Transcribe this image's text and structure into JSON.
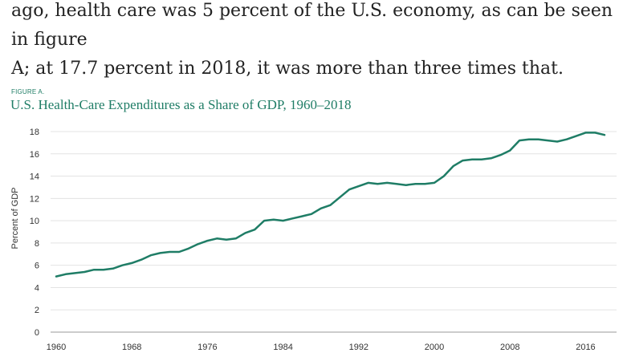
{
  "article": {
    "line1": "ago, health care was 5 percent of the U.S. economy, as can be seen in figure",
    "line2": "A; at 17.7 percent in 2018, it was more than three times that."
  },
  "figure": {
    "label": "FIGURE A.",
    "title": "U.S. Health-Care Expenditures as a Share of GDP, 1960–2018"
  },
  "chart_data": {
    "type": "line",
    "title": "U.S. Health-Care Expenditures as a Share of GDP, 1960–2018",
    "xlabel": "",
    "ylabel": "Percent of GDP",
    "xlim": [
      1960,
      2018
    ],
    "ylim": [
      0,
      18
    ],
    "x_ticks": [
      "1960",
      "1968",
      "1976",
      "1984",
      "1992",
      "2000",
      "2008",
      "2016"
    ],
    "y_ticks": [
      "0",
      "2",
      "4",
      "6",
      "8",
      "10",
      "12",
      "14",
      "16",
      "18"
    ],
    "grid": "horizontal",
    "line_color": "#1f7d66",
    "x": [
      1960,
      1961,
      1962,
      1963,
      1964,
      1965,
      1966,
      1967,
      1968,
      1969,
      1970,
      1971,
      1972,
      1973,
      1974,
      1975,
      1976,
      1977,
      1978,
      1979,
      1980,
      1981,
      1982,
      1983,
      1984,
      1985,
      1986,
      1987,
      1988,
      1989,
      1990,
      1991,
      1992,
      1993,
      1994,
      1995,
      1996,
      1997,
      1998,
      1999,
      2000,
      2001,
      2002,
      2003,
      2004,
      2005,
      2006,
      2007,
      2008,
      2009,
      2010,
      2011,
      2012,
      2013,
      2014,
      2015,
      2016,
      2017,
      2018
    ],
    "values": [
      5.0,
      5.2,
      5.3,
      5.4,
      5.6,
      5.6,
      5.7,
      6.0,
      6.2,
      6.5,
      6.9,
      7.1,
      7.2,
      7.2,
      7.5,
      7.9,
      8.2,
      8.4,
      8.3,
      8.4,
      8.9,
      9.2,
      10.0,
      10.1,
      10.0,
      10.2,
      10.4,
      10.6,
      11.1,
      11.4,
      12.1,
      12.8,
      13.1,
      13.4,
      13.3,
      13.4,
      13.3,
      13.2,
      13.3,
      13.3,
      13.4,
      14.0,
      14.9,
      15.4,
      15.5,
      15.5,
      15.6,
      15.9,
      16.3,
      17.2,
      17.3,
      17.3,
      17.2,
      17.1,
      17.3,
      17.6,
      17.9,
      17.9,
      17.7
    ]
  }
}
